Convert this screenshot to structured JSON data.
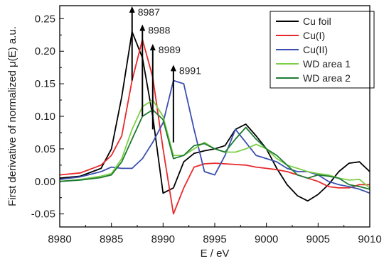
{
  "chart_data": {
    "type": "line",
    "xlabel": "E / eV",
    "ylabel": "First derivative of normalized μ(E) a.u.",
    "xlim": [
      8980,
      9010
    ],
    "ylim": [
      -0.07,
      0.27
    ],
    "xticks": [
      8980,
      8985,
      8990,
      8995,
      9000,
      9005,
      9010
    ],
    "yticks": [
      -0.05,
      0.0,
      0.05,
      0.1,
      0.15,
      0.2,
      0.25
    ],
    "ytick_labels": [
      "-0.05",
      "0.00",
      "0.05",
      "0.10",
      "0.15",
      "0.20",
      "0.25"
    ],
    "grid": false,
    "legend": "top-right",
    "series": [
      {
        "name": "Cu foil",
        "color": "#000000",
        "x": [
          8980,
          8982,
          8984,
          8985,
          8986,
          8987,
          8988,
          8989,
          8990,
          8991,
          8992,
          8993,
          8994,
          8995,
          8996,
          8997,
          8998,
          8999,
          9000,
          9001,
          9002,
          9003,
          9004,
          9005,
          9006,
          9007,
          9008,
          9009,
          9010
        ],
        "y": [
          0.005,
          0.008,
          0.02,
          0.05,
          0.13,
          0.23,
          0.19,
          0.1,
          -0.018,
          -0.01,
          0.03,
          0.043,
          0.047,
          0.05,
          0.055,
          0.08,
          0.088,
          0.07,
          0.05,
          0.02,
          -0.005,
          -0.022,
          -0.03,
          -0.02,
          -0.005,
          0.015,
          0.028,
          0.03,
          0.015
        ]
      },
      {
        "name": "Cu(I)",
        "color": "#e8292b",
        "x": [
          8980,
          8982,
          8984,
          8985,
          8986,
          8987,
          8988,
          8989,
          8990,
          8991,
          8992,
          8993,
          8994,
          8995,
          8996,
          8997,
          8998,
          8999,
          9000,
          9001,
          9002,
          9003,
          9004,
          9005,
          9006,
          9007,
          9008,
          9009,
          9010
        ],
        "y": [
          0.01,
          0.013,
          0.025,
          0.04,
          0.07,
          0.155,
          0.218,
          0.16,
          0.05,
          -0.05,
          -0.01,
          0.022,
          0.027,
          0.028,
          0.027,
          0.026,
          0.025,
          0.022,
          0.02,
          0.018,
          0.015,
          0.01,
          0.005,
          0.0,
          -0.008,
          -0.01,
          -0.01,
          -0.005,
          -0.005
        ]
      },
      {
        "name": "Cu(II)",
        "color": "#3c4fb0",
        "x": [
          8980,
          8982,
          8984,
          8985,
          8986,
          8987,
          8988,
          8989,
          8990,
          8991,
          8992,
          8993,
          8994,
          8995,
          8996,
          8997,
          8998,
          8999,
          9000,
          9001,
          9002,
          9003,
          9004,
          9005,
          9006,
          9007,
          9008,
          9009,
          9010
        ],
        "y": [
          0.003,
          0.007,
          0.015,
          0.022,
          0.02,
          0.02,
          0.035,
          0.06,
          0.09,
          0.155,
          0.15,
          0.08,
          0.015,
          0.01,
          0.04,
          0.08,
          0.06,
          0.04,
          0.035,
          0.03,
          0.02,
          0.015,
          0.015,
          0.01,
          0.0,
          -0.005,
          -0.008,
          -0.012,
          -0.018
        ]
      },
      {
        "name": "WD area 1",
        "color": "#7dcf48",
        "x": [
          8980,
          8982,
          8984,
          8985,
          8986,
          8987,
          8988,
          8989,
          8990,
          8991,
          8992,
          8993,
          8994,
          8995,
          8996,
          8997,
          8998,
          8999,
          9000,
          9001,
          9002,
          9003,
          9004,
          9005,
          9006,
          9007,
          9008,
          9009,
          9010
        ],
        "y": [
          0.0,
          0.003,
          0.008,
          0.012,
          0.035,
          0.08,
          0.115,
          0.125,
          0.1,
          0.04,
          0.04,
          0.05,
          0.06,
          0.05,
          0.045,
          0.045,
          0.05,
          0.057,
          0.05,
          0.035,
          0.025,
          0.02,
          0.015,
          0.012,
          0.01,
          0.005,
          0.002,
          0.003,
          -0.01
        ]
      },
      {
        "name": "WD area 2",
        "color": "#1e7a32",
        "x": [
          8980,
          8982,
          8984,
          8985,
          8986,
          8987,
          8988,
          8989,
          8990,
          8991,
          8992,
          8993,
          8994,
          8995,
          8996,
          8997,
          8998,
          8999,
          9000,
          9001,
          9002,
          9003,
          9004,
          9005,
          9006,
          9007,
          9008,
          9009,
          9010
        ],
        "y": [
          0.0,
          0.002,
          0.006,
          0.01,
          0.03,
          0.065,
          0.1,
          0.11,
          0.095,
          0.035,
          0.04,
          0.055,
          0.058,
          0.05,
          0.045,
          0.065,
          0.083,
          0.065,
          0.05,
          0.04,
          0.025,
          0.01,
          0.005,
          0.01,
          0.008,
          0.005,
          -0.005,
          -0.008,
          -0.012
        ]
      }
    ],
    "annotations": [
      {
        "label": "8987",
        "x": 8987,
        "y_start": 0.155,
        "y_end": 0.268
      },
      {
        "label": "8988",
        "x": 8988,
        "y_start": 0.1,
        "y_end": 0.24
      },
      {
        "label": "8989",
        "x": 8989,
        "y_start": 0.08,
        "y_end": 0.21
      },
      {
        "label": "8991",
        "x": 8991,
        "y_start": 0.06,
        "y_end": 0.178
      }
    ]
  }
}
